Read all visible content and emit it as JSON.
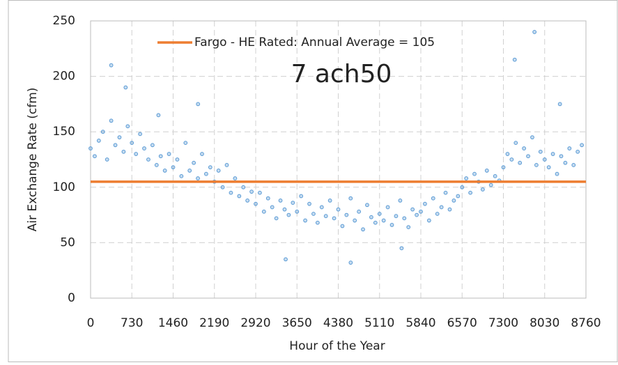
{
  "chart_data": {
    "type": "scatter",
    "xlabel": "Hour of the Year",
    "ylabel": "Air Exchange Rate (cfm)",
    "annotation": "7 ach50",
    "xlim": [
      0,
      8760
    ],
    "ylim": [
      0,
      250
    ],
    "xticks": [
      0,
      730,
      1460,
      2190,
      2920,
      3650,
      4380,
      5110,
      5840,
      6570,
      7300,
      8030,
      8760
    ],
    "yticks": [
      0,
      50,
      100,
      150,
      200,
      250
    ],
    "grid": true,
    "legend": "top",
    "series": [
      {
        "color": "#5b9bd5",
        "x": [
          0,
          73,
          146,
          219,
          292,
          365,
          438,
          511,
          584,
          657,
          730,
          803,
          876,
          949,
          1022,
          1095,
          1168,
          1241,
          1314,
          1387,
          1460,
          1533,
          1606,
          1679,
          1752,
          1825,
          1898,
          1971,
          2044,
          2117,
          2190,
          2263,
          2336,
          2409,
          2482,
          2555,
          2628,
          2701,
          2774,
          2847,
          2920,
          2993,
          3066,
          3139,
          3212,
          3285,
          3358,
          3431,
          3504,
          3577,
          3650,
          3723,
          3796,
          3869,
          3942,
          4015,
          4088,
          4161,
          4234,
          4307,
          4380,
          4453,
          4526,
          4599,
          4672,
          4745,
          4818,
          4891,
          4964,
          5037,
          5110,
          5183,
          5256,
          5329,
          5402,
          5475,
          5548,
          5621,
          5694,
          5767,
          5840,
          5913,
          5986,
          6059,
          6132,
          6205,
          6278,
          6351,
          6424,
          6497,
          6570,
          6643,
          6716,
          6789,
          6862,
          6935,
          7008,
          7081,
          7154,
          7227,
          7300,
          7373,
          7446,
          7519,
          7592,
          7665,
          7738,
          7811,
          7884,
          7957,
          8030,
          8103,
          8176,
          8249,
          8322,
          8395,
          8468,
          8541,
          8614,
          8687,
          365,
          620,
          1900,
          3450,
          4600,
          7500,
          7850,
          8300,
          1200,
          5500
        ],
        "values": [
          135,
          128,
          142,
          150,
          125,
          160,
          138,
          145,
          132,
          155,
          140,
          130,
          148,
          135,
          125,
          138,
          120,
          128,
          115,
          130,
          118,
          125,
          110,
          140,
          115,
          122,
          108,
          130,
          112,
          118,
          105,
          115,
          100,
          120,
          95,
          108,
          92,
          100,
          88,
          96,
          85,
          95,
          78,
          90,
          82,
          72,
          88,
          80,
          75,
          86,
          78,
          92,
          70,
          85,
          76,
          68,
          82,
          74,
          88,
          72,
          80,
          65,
          75,
          90,
          70,
          78,
          62,
          84,
          73,
          68,
          76,
          70,
          82,
          66,
          74,
          88,
          72,
          64,
          80,
          75,
          78,
          85,
          70,
          90,
          76,
          82,
          95,
          80,
          88,
          92,
          100,
          108,
          95,
          112,
          105,
          98,
          115,
          102,
          110,
          106,
          118,
          130,
          125,
          140,
          122,
          135,
          128,
          145,
          120,
          132,
          125,
          118,
          130,
          112,
          128,
          122,
          135,
          120,
          132,
          138,
          210,
          190,
          175,
          35,
          32,
          215,
          240,
          175,
          165,
          45
        ]
      },
      {
        "type": "line",
        "name": "Fargo - HE Rated:  Annual Average = 105",
        "color": "#ed7d31",
        "x": [
          0,
          8760
        ],
        "values": [
          105,
          105
        ]
      }
    ]
  }
}
